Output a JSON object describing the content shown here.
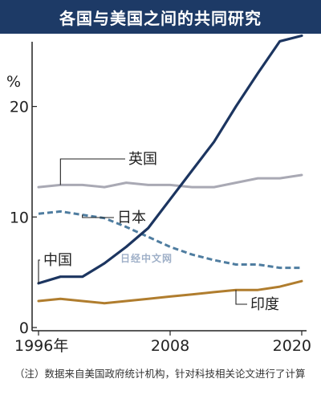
{
  "title": "各国与美国之间的共同研究",
  "note": "（注）数据来自美国政府统计机构，针对科技相关论文进行了计算",
  "watermark": "日经中文网",
  "colors": {
    "header_bg": "#1d3a66",
    "china": "#1c3560",
    "uk": "#a9a9b4",
    "japan": "#4f7da0",
    "india": "#b07d2e"
  },
  "chart_data": {
    "type": "line",
    "title": "各国与美国之间的共同研究",
    "unit_label": "%",
    "xlim": [
      1996,
      2020
    ],
    "ylim": [
      0,
      26
    ],
    "x_ticks": [
      {
        "value": 1996,
        "label": "1996年"
      },
      {
        "value": 2008,
        "label": "2008"
      },
      {
        "value": 2020,
        "label": "2020"
      }
    ],
    "y_ticks": [
      {
        "value": 0,
        "label": "0"
      },
      {
        "value": 10,
        "label": "10"
      },
      {
        "value": 20,
        "label": "20"
      }
    ],
    "x": [
      1996,
      1998,
      2000,
      2002,
      2004,
      2006,
      2008,
      2010,
      2012,
      2014,
      2016,
      2018,
      2020
    ],
    "series": [
      {
        "name": "中国",
        "key": "china",
        "style": "solid",
        "values": [
          4.0,
          4.6,
          4.6,
          5.8,
          7.3,
          9.0,
          11.6,
          14.2,
          16.8,
          20.0,
          23.0,
          25.9,
          26.4
        ]
      },
      {
        "name": "英国",
        "key": "uk",
        "style": "solid",
        "values": [
          12.7,
          12.9,
          12.9,
          12.7,
          13.1,
          12.9,
          12.9,
          12.7,
          12.7,
          13.1,
          13.5,
          13.5,
          13.8
        ]
      },
      {
        "name": "日本",
        "key": "japan",
        "style": "dashed",
        "values": [
          10.3,
          10.5,
          10.2,
          9.9,
          9.1,
          8.2,
          7.3,
          6.6,
          6.1,
          5.7,
          5.7,
          5.4,
          5.4
        ]
      },
      {
        "name": "印度",
        "key": "india",
        "style": "solid",
        "values": [
          2.4,
          2.6,
          2.4,
          2.2,
          2.4,
          2.6,
          2.8,
          3.0,
          3.2,
          3.4,
          3.4,
          3.7,
          4.2
        ]
      }
    ],
    "labels": [
      {
        "series": "英国",
        "text": "英国"
      },
      {
        "series": "日本",
        "text": "日本"
      },
      {
        "series": "中国",
        "text": "中国"
      },
      {
        "series": "印度",
        "text": "印度"
      }
    ]
  }
}
